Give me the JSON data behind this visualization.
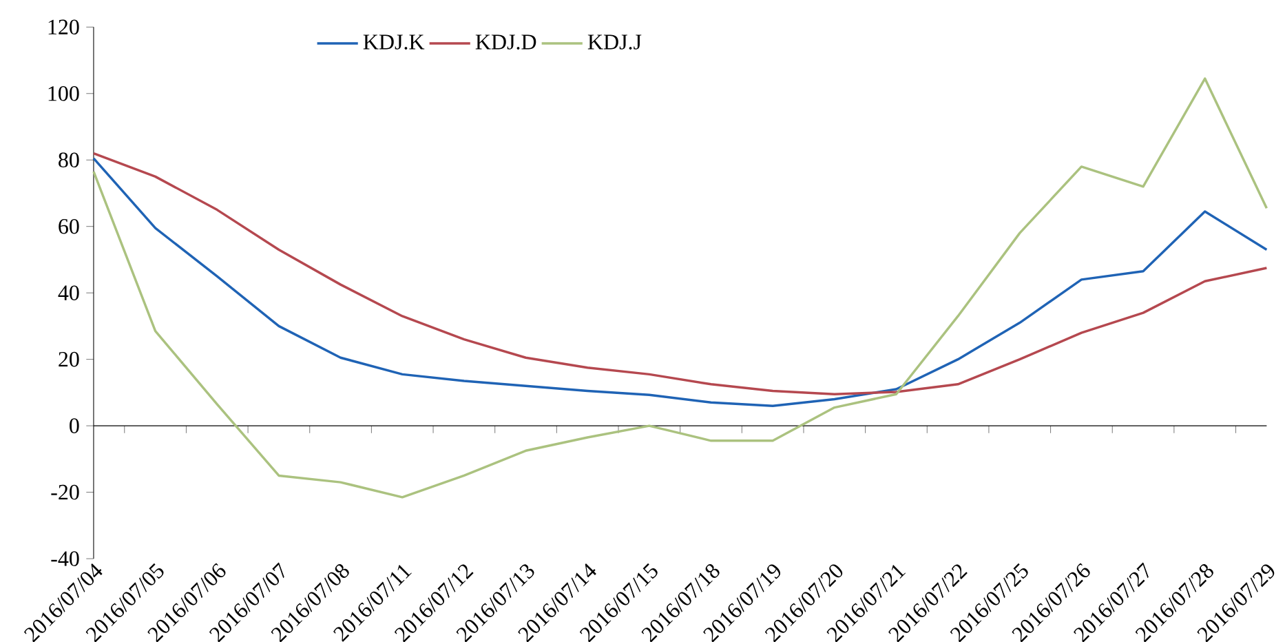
{
  "chart_data": {
    "type": "line",
    "categories": [
      "2016/07/04",
      "2016/07/05",
      "2016/07/06",
      "2016/07/07",
      "2016/07/08",
      "2016/07/11",
      "2016/07/12",
      "2016/07/13",
      "2016/07/14",
      "2016/07/15",
      "2016/07/18",
      "2016/07/19",
      "2016/07/20",
      "2016/07/21",
      "2016/07/22",
      "2016/07/25",
      "2016/07/26",
      "2016/07/27",
      "2016/07/28",
      "2016/07/29"
    ],
    "series": [
      {
        "name": "KDJ.K",
        "color": "#1f63b5",
        "values": [
          80.5,
          59.5,
          45,
          30,
          20.5,
          15.5,
          13.5,
          12,
          10.5,
          9.3,
          7,
          6,
          8,
          11,
          20,
          31,
          44,
          46.5,
          64.5,
          53
        ]
      },
      {
        "name": "KDJ.D",
        "color": "#b5484f",
        "values": [
          82,
          75,
          65,
          53,
          42.5,
          33,
          26,
          20.5,
          17.5,
          15.5,
          12.5,
          10.5,
          9.5,
          10.2,
          12.5,
          20,
          28,
          34,
          43.5,
          47.5
        ]
      },
      {
        "name": "KDJ.J",
        "color": "#abc27f",
        "values": [
          76.5,
          28.5,
          6.5,
          -15,
          -17,
          -21.5,
          -15,
          -7.5,
          -3.5,
          0,
          -4.5,
          -4.5,
          5.5,
          9.5,
          33,
          58,
          78,
          72,
          104.5,
          65.5
        ]
      }
    ],
    "ylim": [
      -40,
      120
    ],
    "yticks": [
      -40,
      -20,
      0,
      20,
      40,
      60,
      80,
      100,
      120
    ],
    "legend": "top",
    "marker": "none",
    "line_style": "solid"
  }
}
